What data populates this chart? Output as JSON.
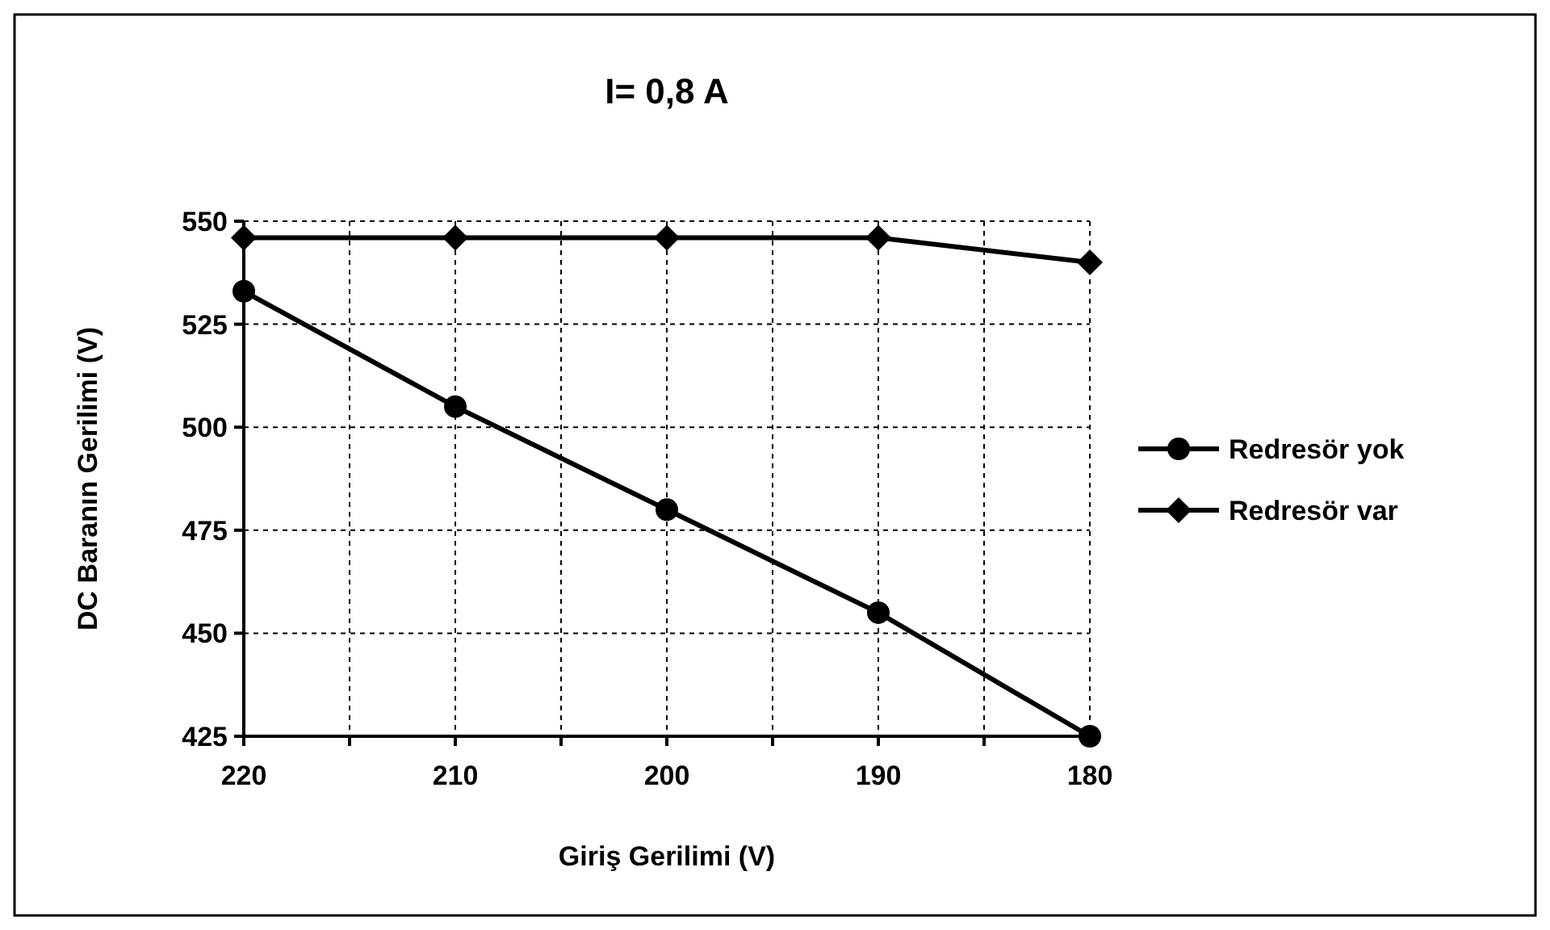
{
  "chart_data": {
    "type": "line",
    "title": "I= 0,8 A",
    "xlabel": "Giriş Gerilimi (V)",
    "ylabel": "DC Baranın Gerilimi (V)",
    "x": [
      220,
      210,
      200,
      190,
      180
    ],
    "xlim": [
      220,
      180
    ],
    "xticks": [
      220,
      {
        "value": 215,
        "label": null
      },
      210,
      {
        "value": 205,
        "label": null
      },
      200,
      {
        "value": 195,
        "label": null
      },
      190,
      {
        "value": 185,
        "label": null
      },
      180
    ],
    "ylim": [
      425,
      550
    ],
    "yticks": [
      425,
      450,
      475,
      500,
      525,
      550
    ],
    "grid": true,
    "legend": "right",
    "line_style": "solid",
    "series": [
      {
        "name": "Redresör yok",
        "color": "#000000",
        "marker": "circle",
        "values": [
          533,
          505,
          480,
          455,
          425
        ]
      },
      {
        "name": "Redresör var",
        "color": "#000000",
        "marker": "diamond",
        "values": [
          546,
          546,
          546,
          546,
          540
        ]
      }
    ]
  }
}
